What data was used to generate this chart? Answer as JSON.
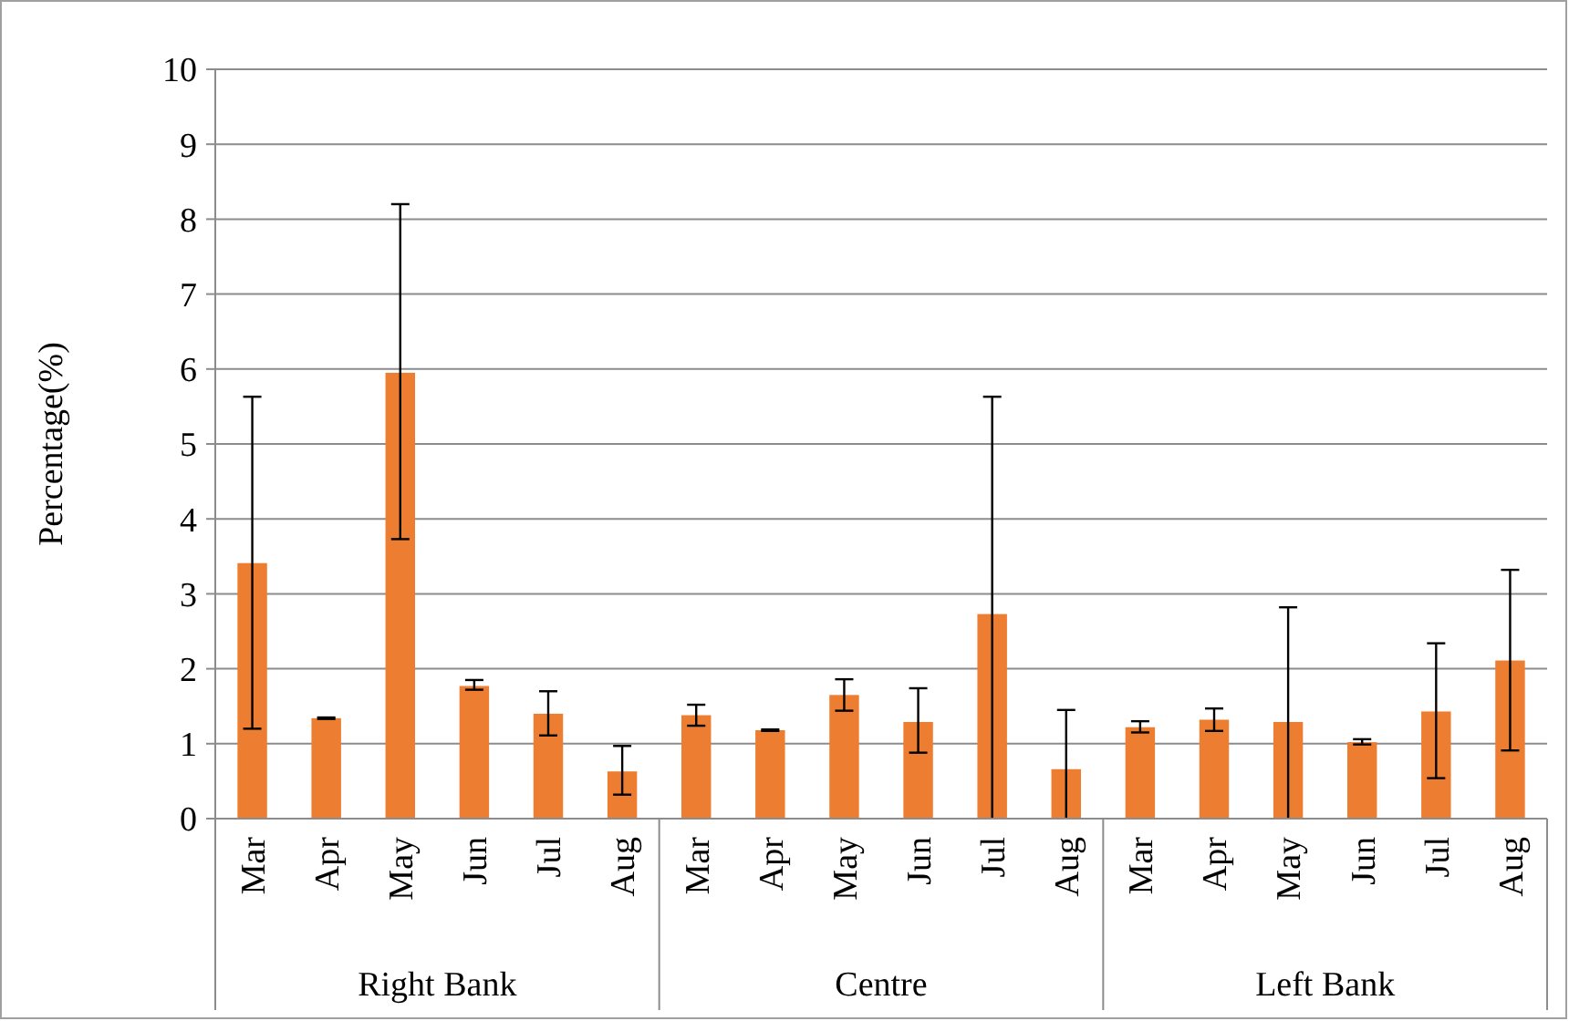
{
  "chart_data": {
    "type": "bar",
    "ylabel": "Percentage(%)",
    "categories": [
      "Mar",
      "Apr",
      "May",
      "Jun",
      "Jul",
      "Aug",
      "Mar",
      "Apr",
      "May",
      "Jun",
      "Jul",
      "Aug",
      "Mar",
      "Apr",
      "May",
      "Jun",
      "Jul",
      "Aug"
    ],
    "annotations": [
      "Right Bank",
      "Centre",
      "Left Bank"
    ],
    "series": [
      {
        "color": "#ed7d31",
        "values": [
          3.41,
          1.34,
          5.95,
          1.77,
          1.4,
          0.63,
          1.38,
          1.18,
          1.65,
          1.29,
          2.73,
          0.66,
          1.22,
          1.32,
          1.29,
          1.02,
          1.43,
          2.11
        ],
        "errors": [
          [
            1.2,
            5.63
          ],
          [
            1.33,
            1.35
          ],
          [
            3.73,
            8.2
          ],
          [
            1.72,
            1.85
          ],
          [
            1.11,
            1.7
          ],
          [
            0.32,
            0.97
          ],
          [
            1.24,
            1.52
          ],
          [
            1.17,
            1.19
          ],
          [
            1.44,
            1.86
          ],
          [
            0.88,
            1.74
          ],
          [
            0,
            5.63
          ],
          [
            0,
            1.45
          ],
          [
            1.15,
            1.3
          ],
          [
            1.17,
            1.47
          ],
          [
            0,
            2.82
          ],
          [
            0.99,
            1.06
          ],
          [
            0.54,
            2.34
          ],
          [
            0.91,
            3.32
          ]
        ]
      }
    ],
    "ylim": [
      0,
      10
    ],
    "yticks": [
      0,
      1,
      2,
      3,
      4,
      5,
      6,
      7,
      8,
      9,
      10
    ],
    "grid": "y"
  }
}
